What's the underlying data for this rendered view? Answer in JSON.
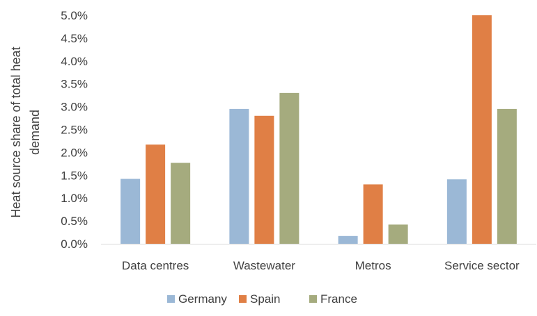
{
  "chart_data": {
    "type": "bar",
    "title": "",
    "xlabel": "",
    "ylabel_lines": [
      "Heat source share of total heat",
      "demand"
    ],
    "ylim": [
      0,
      5
    ],
    "yticks": [
      {
        "value": 0.0,
        "label": "0.0%"
      },
      {
        "value": 0.5,
        "label": "0.5%"
      },
      {
        "value": 1.0,
        "label": "1.0%"
      },
      {
        "value": 1.5,
        "label": "1.5%"
      },
      {
        "value": 2.0,
        "label": "2.0%"
      },
      {
        "value": 2.5,
        "label": "2.5%"
      },
      {
        "value": 3.0,
        "label": "3.0%"
      },
      {
        "value": 3.5,
        "label": "3.5%"
      },
      {
        "value": 4.0,
        "label": "4.0%"
      },
      {
        "value": 4.5,
        "label": "4.5%"
      },
      {
        "value": 5.0,
        "label": "5.0%"
      }
    ],
    "categories": [
      "Data centres",
      "Wastewater",
      "Metros",
      "Service sector"
    ],
    "series": [
      {
        "name": "Germany",
        "color": "#9bb8d6",
        "values": [
          1.42,
          2.95,
          0.17,
          1.41
        ]
      },
      {
        "name": "Spain",
        "color": "#e07f45",
        "values": [
          2.17,
          2.8,
          1.3,
          5.0
        ]
      },
      {
        "name": "France",
        "color": "#a5ab7e",
        "values": [
          1.77,
          3.3,
          0.42,
          2.95
        ]
      }
    ],
    "grid": false,
    "legend_position": "bottom"
  }
}
